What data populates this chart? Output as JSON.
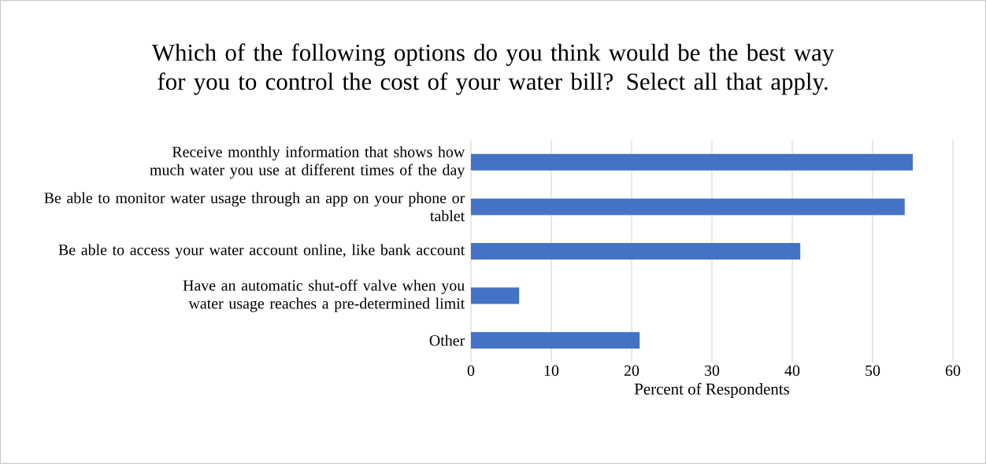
{
  "chart_data": {
    "type": "bar",
    "orientation": "horizontal",
    "title": "Which of the following options do you think would be the best way for you to control the cost of your water bill? Select all that apply.",
    "categories": [
      "Receive monthly information that shows how much water you use at different times of the day",
      "Be able to monitor water usage through an app on your phone or tablet",
      "Be able to access your water account online, like bank account",
      "Have an automatic shut-off valve when you water usage reaches a pre-determined limit",
      "Other"
    ],
    "values": [
      55,
      54,
      41,
      6,
      21
    ],
    "color": "#4472c4",
    "xlabel": "Percent of Respondents",
    "xlim": [
      0,
      60
    ],
    "xticks": [
      0,
      10,
      20,
      30,
      40,
      50,
      60
    ],
    "grid": "x"
  }
}
